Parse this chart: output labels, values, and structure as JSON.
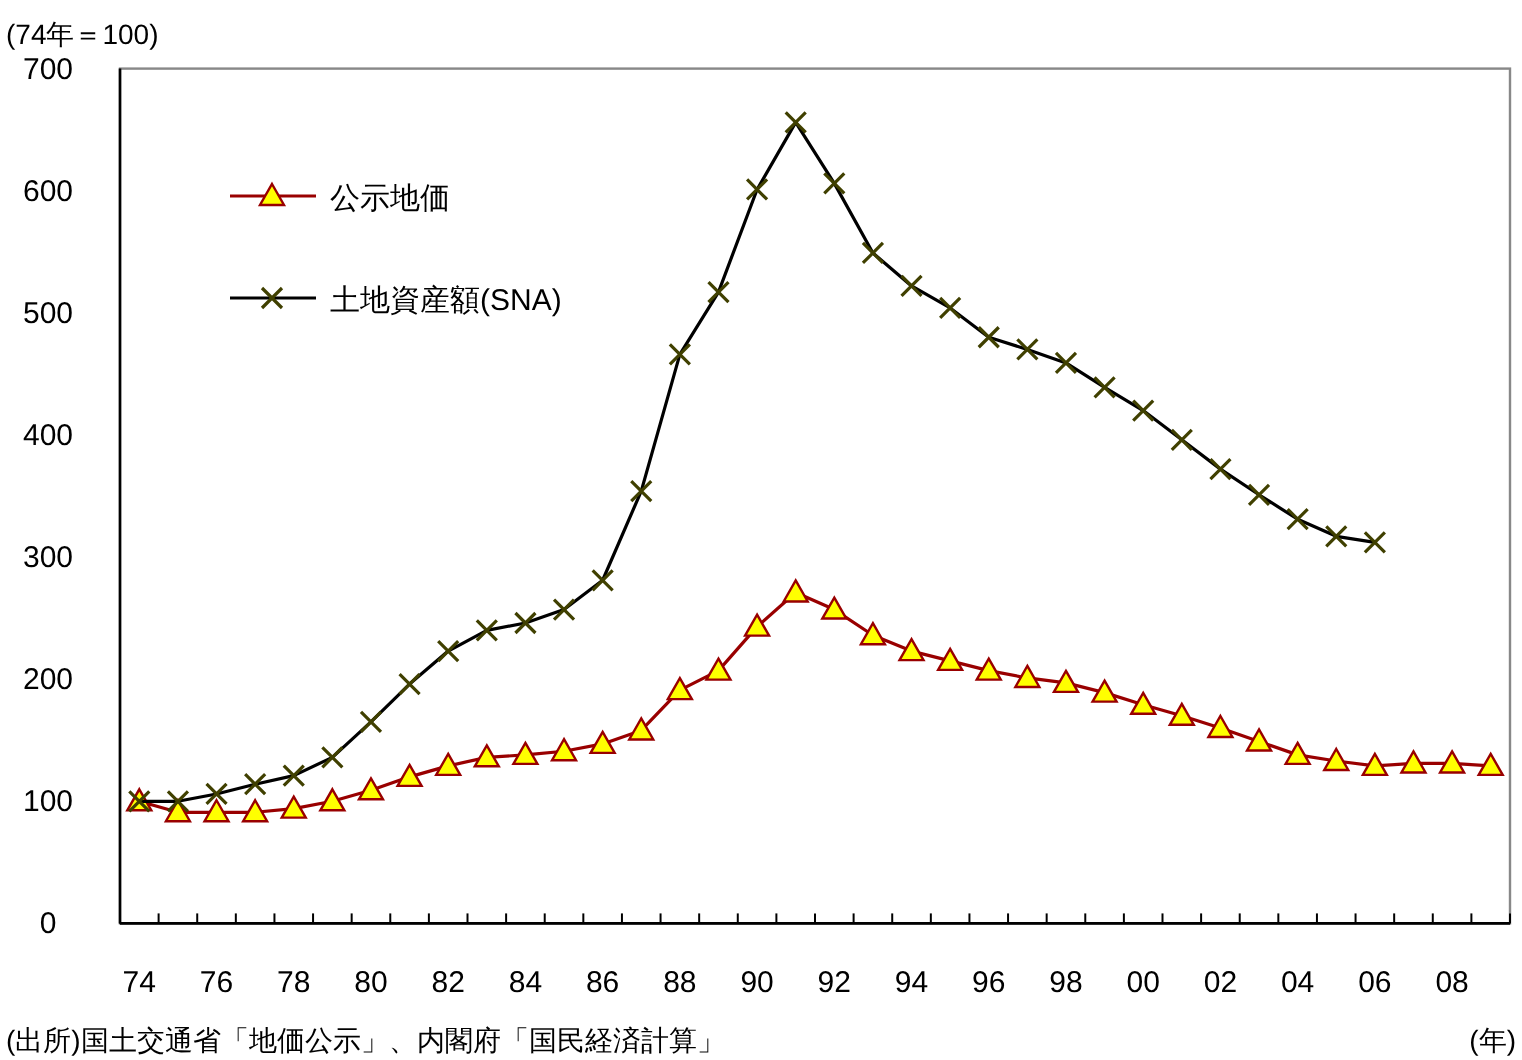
{
  "chart_data": {
    "type": "line",
    "ylabel": "(74年＝100)",
    "xlabel": "(年)",
    "annotations": [
      "(出所)国土交通省「地価公示」、内閣府「国民経済計算」"
    ],
    "categories": [
      "74",
      null,
      "76",
      null,
      "78",
      null,
      "80",
      null,
      "82",
      null,
      "84",
      null,
      "86",
      null,
      "88",
      null,
      "90",
      null,
      "92",
      null,
      "94",
      null,
      "96",
      null,
      "98",
      null,
      "00",
      null,
      "02",
      null,
      "04",
      null,
      "06",
      null,
      "08",
      null
    ],
    "ylim": [
      0,
      700
    ],
    "yticks": [
      0,
      100,
      200,
      300,
      400,
      500,
      600,
      700
    ],
    "grid": false,
    "legend": "top left",
    "line_style": "solid",
    "series": [
      {
        "name": "公示地価",
        "color": "#990000",
        "marker": "triangle",
        "values": [
          100,
          91,
          91,
          91,
          94,
          100,
          109,
          120,
          129,
          136,
          138,
          141,
          147,
          158,
          191,
          207,
          243,
          271,
          257,
          236,
          223,
          215,
          207,
          201,
          197,
          189,
          179,
          170,
          160,
          149,
          138,
          133,
          129,
          131,
          131,
          129
        ]
      },
      {
        "name": "土地資産額(SNA)",
        "color": "#000000",
        "marker": "cross",
        "values": [
          100,
          100,
          106,
          114,
          121,
          136,
          165,
          196,
          223,
          240,
          246,
          257,
          281,
          354,
          466,
          517,
          601,
          656,
          606,
          549,
          522,
          504,
          480,
          470,
          459,
          439,
          420,
          396,
          372,
          351,
          331,
          317,
          312,
          null,
          null,
          null
        ]
      }
    ]
  }
}
